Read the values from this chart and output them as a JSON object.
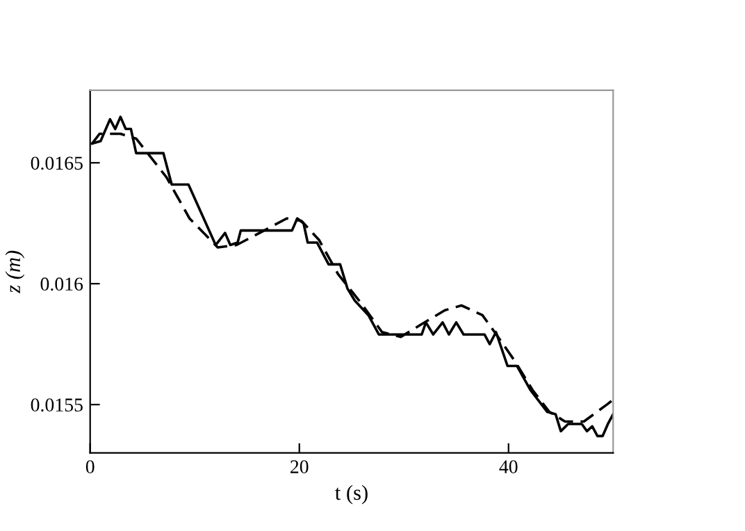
{
  "chart_data": {
    "type": "line",
    "xlabel": "t (s)",
    "ylabel": "z (m)",
    "xlim": [
      0,
      50
    ],
    "ylim": [
      0.0153,
      0.0168
    ],
    "xticks": [
      0,
      20,
      40
    ],
    "yticks": [
      0.0155,
      {
        "value": 0.016,
        "label": "0.016"
      },
      0.0165
    ],
    "grid": false,
    "marker": "none",
    "series": [
      {
        "color": "#000000",
        "line_style": "solid",
        "x": [
          0.2,
          1.0,
          1.9,
          2.4,
          2.9,
          3.4,
          3.9,
          4.4,
          7.0,
          7.8,
          9.4,
          12.0,
          12.9,
          13.4,
          14.1,
          14.4,
          19.3,
          19.8,
          20.4,
          20.8,
          21.7,
          22.8,
          23.9,
          24.6,
          25.3,
          26.6,
          27.6,
          31.7,
          32.1,
          32.8,
          33.7,
          34.3,
          35.0,
          35.7,
          37.7,
          38.2,
          38.8,
          39.9,
          40.8,
          42.1,
          43.7,
          44.5,
          45.0,
          45.7,
          47.0,
          47.5,
          48.0,
          48.5,
          49.0,
          49.5,
          50.0
        ],
        "values": [
          0.01658,
          0.01659,
          0.01668,
          0.01664,
          0.01669,
          0.01664,
          0.01664,
          0.01654,
          0.01654,
          0.01641,
          0.01641,
          0.01616,
          0.01621,
          0.01616,
          0.01617,
          0.01622,
          0.01622,
          0.01627,
          0.01625,
          0.01617,
          0.01617,
          0.01608,
          0.01608,
          0.01598,
          0.01593,
          0.01587,
          0.01579,
          0.01579,
          0.01584,
          0.01579,
          0.01584,
          0.01579,
          0.01584,
          0.01579,
          0.01579,
          0.01575,
          0.0158,
          0.01566,
          0.01566,
          0.01556,
          0.01547,
          0.01546,
          0.01539,
          0.01542,
          0.01542,
          0.01539,
          0.01541,
          0.01537,
          0.01537,
          0.01542,
          0.01546
        ]
      },
      {
        "color": "#000000",
        "line_style": "dashed",
        "x": [
          0.2,
          0.9,
          2.9,
          4.4,
          7.3,
          9.5,
          12.2,
          14.0,
          16.2,
          18.8,
          20.2,
          21.9,
          23.7,
          25.9,
          27.9,
          29.7,
          31.6,
          33.9,
          35.5,
          37.5,
          39.0,
          40.6,
          42.3,
          43.9,
          45.4,
          47.2,
          49.4,
          50.0
        ],
        "values": [
          0.01658,
          0.01662,
          0.01662,
          0.0166,
          0.01644,
          0.01627,
          0.01615,
          0.01616,
          0.01621,
          0.01627,
          0.01626,
          0.01618,
          0.01604,
          0.01592,
          0.0158,
          0.01578,
          0.01583,
          0.01589,
          0.01591,
          0.01587,
          0.01578,
          0.01568,
          0.01556,
          0.01547,
          0.01543,
          0.01543,
          0.0155,
          0.01552
        ]
      }
    ]
  }
}
